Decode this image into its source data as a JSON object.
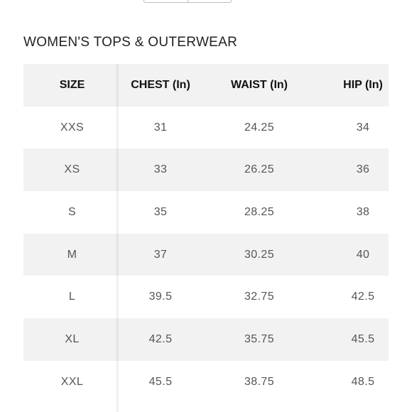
{
  "title": "WOMEN'S TOPS & OUTERWEAR",
  "table": {
    "headers": [
      "SIZE",
      "CHEST (In)",
      "WAIST (In)",
      "HIP (In)"
    ],
    "rows": [
      [
        "XXS",
        "31",
        "24.25",
        "34"
      ],
      [
        "XS",
        "33",
        "26.25",
        "36"
      ],
      [
        "S",
        "35",
        "28.25",
        "38"
      ],
      [
        "M",
        "37",
        "30.25",
        "40"
      ],
      [
        "L",
        "39.5",
        "32.75",
        "42.5"
      ],
      [
        "XL",
        "42.5",
        "35.75",
        "45.5"
      ],
      [
        "XXL",
        "45.5",
        "38.75",
        "48.5"
      ]
    ]
  },
  "colors": {
    "shaded_row": "#f2f2f2",
    "text": "#555555",
    "header_text": "#111111"
  }
}
